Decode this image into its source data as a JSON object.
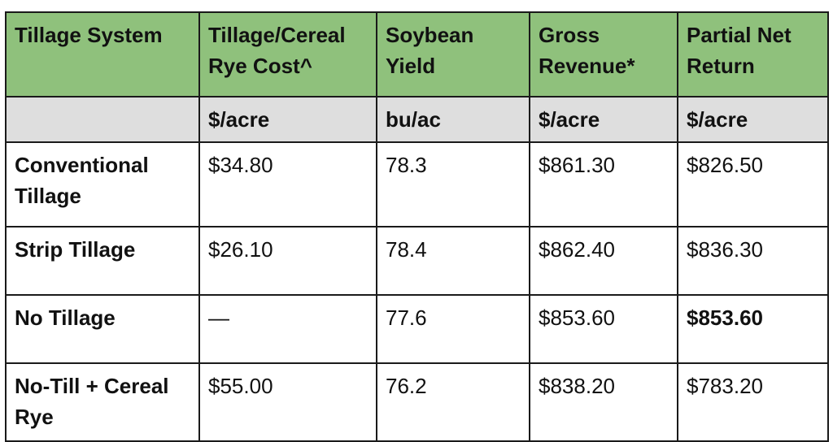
{
  "table": {
    "headers": [
      "Tillage System",
      "Tillage/Cereal Rye Cost^",
      "Soybean Yield",
      "Gross Revenue*",
      "Partial Net Return"
    ],
    "units": [
      "",
      "$/acre",
      "bu/ac",
      "$/acre",
      "$/acre"
    ],
    "rows": [
      {
        "system": "Conventional Tillage",
        "cost": "$34.80",
        "yield": "78.3",
        "gross": "$861.30",
        "net": "$826.50"
      },
      {
        "system": "Strip Tillage",
        "cost": "$26.10",
        "yield": "78.4",
        "gross": "$862.40",
        "net": "$836.30"
      },
      {
        "system": "No Tillage",
        "cost": "—",
        "yield": "77.6",
        "gross": "$853.60",
        "net": "$853.60"
      },
      {
        "system": "No-Till + Cereal Rye",
        "cost": "$55.00",
        "yield": "76.2",
        "gross": "$838.20",
        "net": "$783.20"
      }
    ]
  },
  "colors": {
    "header_bg": "#8fc17c",
    "units_bg": "#dedede",
    "border": "#1a1a1a"
  }
}
